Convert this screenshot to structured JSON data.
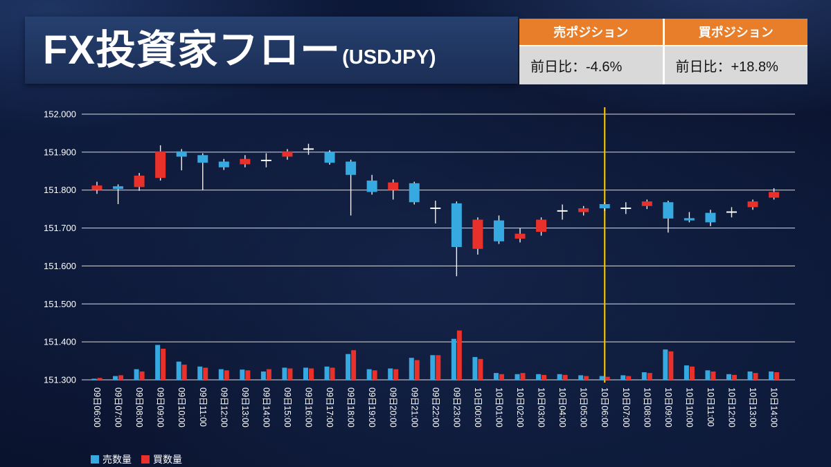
{
  "title": {
    "main": "FX投資家フロー",
    "sub": "(USDJPY)"
  },
  "positions": {
    "sell": {
      "header": "売ポジション",
      "value": "前日比：-4.6%"
    },
    "buy": {
      "header": "買ポジション",
      "value": "前日比：+18.8%"
    }
  },
  "legend": {
    "sell_label": "売数量",
    "buy_label": "買数量"
  },
  "colors": {
    "sell": "#36A9E1",
    "buy": "#E8312A",
    "wick": "#F2F2F2",
    "doji": "#FFFFFF",
    "vline": "#EFC000",
    "grid": "rgba(255,255,255,0.85)",
    "header_orange": "#E87D2A",
    "table_body": "#D9D9D9",
    "axis_text": "#FFFFFF"
  },
  "chart_data": {
    "type": "candlestick",
    "title": "",
    "xlabel": "",
    "ylabel": "",
    "ylim": [
      151.3,
      152.0
    ],
    "grid": true,
    "legend_position": "bottom-left",
    "legend_labels": [
      "売数量",
      "買数量"
    ],
    "ytick_labels": [
      "152.000",
      "151.900",
      "151.800",
      "151.700",
      "151.600",
      "151.500",
      "151.400",
      "151.300"
    ],
    "categories": [
      "09日06:00",
      "09日07:00",
      "09日08:00",
      "09日09:00",
      "09日10:00",
      "09日11:00",
      "09日12:00",
      "09日13:00",
      "09日14:00",
      "09日15:00",
      "09日16:00",
      "09日17:00",
      "09日18:00",
      "09日19:00",
      "09日20:00",
      "09日21:00",
      "09日22:00",
      "09日23:00",
      "10日00:00",
      "10日01:00",
      "10日02:00",
      "10日03:00",
      "10日04:00",
      "10日05:00",
      "10日06:00",
      "10日07:00",
      "10日08:00",
      "10日09:00",
      "10日10:00",
      "10日11:00",
      "10日12:00",
      "10日13:00",
      "10日14:00"
    ],
    "candles_ohlc": [
      [
        151.8,
        151.822,
        151.79,
        151.812
      ],
      [
        151.81,
        151.815,
        151.763,
        151.803
      ],
      [
        151.808,
        151.845,
        151.798,
        151.838
      ],
      [
        151.832,
        151.918,
        151.825,
        151.902
      ],
      [
        151.902,
        151.908,
        151.852,
        151.888
      ],
      [
        151.892,
        151.897,
        151.8,
        151.872
      ],
      [
        151.875,
        151.882,
        151.853,
        151.86
      ],
      [
        151.868,
        151.892,
        151.86,
        151.882
      ],
      [
        151.878,
        151.897,
        151.86,
        151.878
      ],
      [
        151.888,
        151.908,
        151.88,
        151.902
      ],
      [
        151.908,
        151.922,
        151.893,
        151.908
      ],
      [
        151.9,
        151.905,
        151.867,
        151.872
      ],
      [
        151.875,
        151.88,
        151.733,
        151.84
      ],
      [
        151.825,
        151.84,
        151.788,
        151.795
      ],
      [
        151.8,
        151.828,
        151.775,
        151.82
      ],
      [
        151.818,
        151.822,
        151.762,
        151.768
      ],
      [
        151.752,
        151.772,
        151.712,
        151.752
      ],
      [
        151.765,
        151.77,
        151.573,
        151.65
      ],
      [
        151.645,
        151.728,
        151.63,
        151.722
      ],
      [
        151.72,
        151.733,
        151.658,
        151.665
      ],
      [
        151.672,
        151.7,
        151.662,
        151.685
      ],
      [
        151.69,
        151.728,
        151.68,
        151.722
      ],
      [
        151.745,
        151.762,
        151.722,
        151.745
      ],
      [
        151.742,
        151.758,
        151.733,
        151.752
      ],
      [
        151.763,
        151.768,
        151.745,
        151.752
      ],
      [
        151.752,
        151.768,
        151.737,
        151.752
      ],
      [
        151.758,
        151.775,
        151.75,
        151.77
      ],
      [
        151.768,
        151.772,
        151.688,
        151.725
      ],
      [
        151.726,
        151.742,
        151.715,
        151.72
      ],
      [
        151.74,
        151.748,
        151.705,
        151.715
      ],
      [
        151.742,
        151.755,
        151.728,
        151.742
      ],
      [
        151.755,
        151.775,
        151.748,
        151.77
      ],
      [
        151.78,
        151.805,
        151.775,
        151.795
      ]
    ],
    "sell_volume": [
      3,
      10,
      28,
      92,
      48,
      35,
      28,
      27,
      22,
      32,
      32,
      35,
      68,
      28,
      30,
      58,
      65,
      108,
      60,
      18,
      15,
      15,
      15,
      12,
      10,
      12,
      20,
      80,
      38,
      25,
      15,
      22,
      22
    ],
    "buy_volume": [
      5,
      12,
      22,
      82,
      40,
      32,
      25,
      25,
      28,
      30,
      30,
      32,
      78,
      25,
      28,
      52,
      65,
      130,
      55,
      15,
      18,
      13,
      13,
      10,
      8,
      10,
      18,
      75,
      35,
      22,
      13,
      18,
      20
    ],
    "volume_scale_note": "volume bars rise from the 151.300 baseline; 1 unit = 0.001 of price axis",
    "vline_category_index": 24
  }
}
